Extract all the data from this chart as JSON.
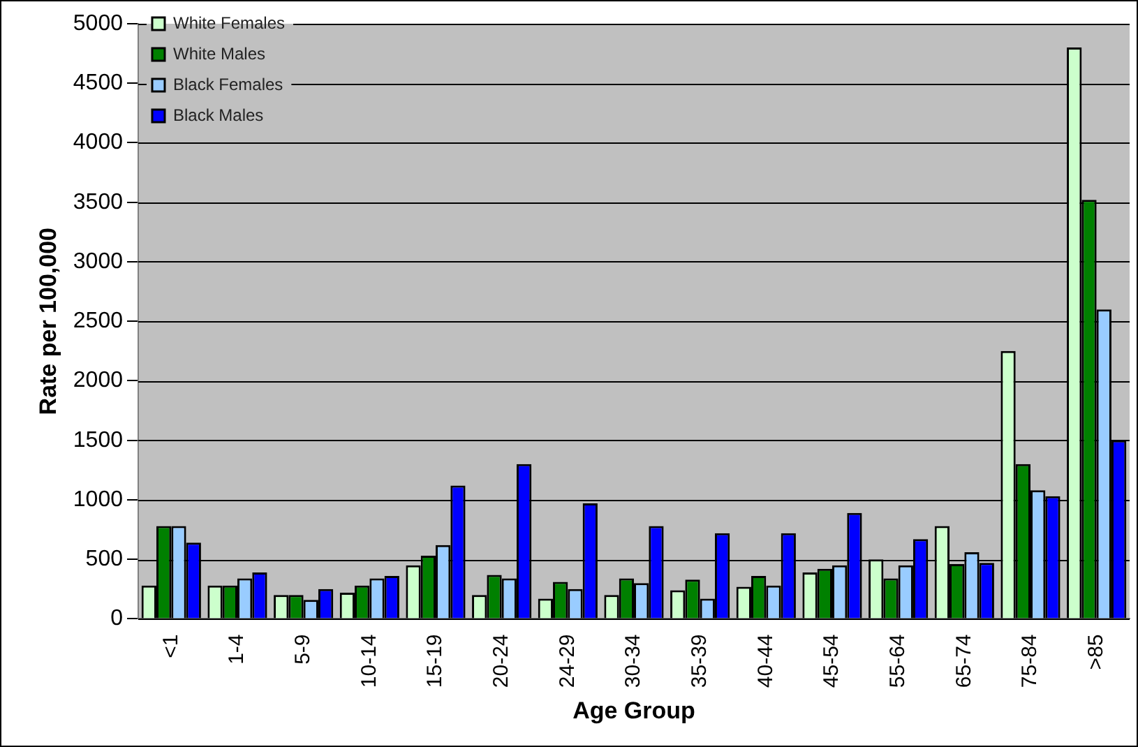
{
  "chart_data": {
    "type": "bar",
    "xlabel": "Age Group",
    "ylabel": "Rate per 100,000",
    "categories": [
      "<1",
      "1-4",
      "5-9",
      "10-14",
      "15-19",
      "20-24",
      "24-29",
      "30-34",
      "35-39",
      "40-44",
      "45-54",
      "55-64",
      "65-74",
      "75-84",
      ">85"
    ],
    "series": [
      {
        "name": "White Females",
        "color": "#ccffcc",
        "values": [
          280,
          280,
          200,
          220,
          450,
          200,
          170,
          200,
          240,
          270,
          390,
          500,
          780,
          2250,
          4800
        ]
      },
      {
        "name": "White Males",
        "color": "#008000",
        "values": [
          780,
          280,
          200,
          280,
          530,
          370,
          310,
          340,
          330,
          360,
          420,
          340,
          460,
          1300,
          3520
        ]
      },
      {
        "name": "Black Females",
        "color": "#99ccff",
        "values": [
          780,
          340,
          160,
          340,
          620,
          340,
          250,
          300,
          170,
          280,
          450,
          450,
          560,
          1080,
          2600
        ]
      },
      {
        "name": "Black Males",
        "color": "#0000ff",
        "values": [
          640,
          390,
          250,
          360,
          1120,
          1300,
          970,
          780,
          720,
          720,
          890,
          670,
          470,
          1030,
          1500
        ]
      }
    ],
    "ylim": [
      0,
      5000
    ],
    "yticks": [
      0,
      500,
      1000,
      1500,
      2000,
      2500,
      3000,
      3500,
      4000,
      4500,
      5000
    ],
    "grid": "y",
    "legend": "top left"
  }
}
